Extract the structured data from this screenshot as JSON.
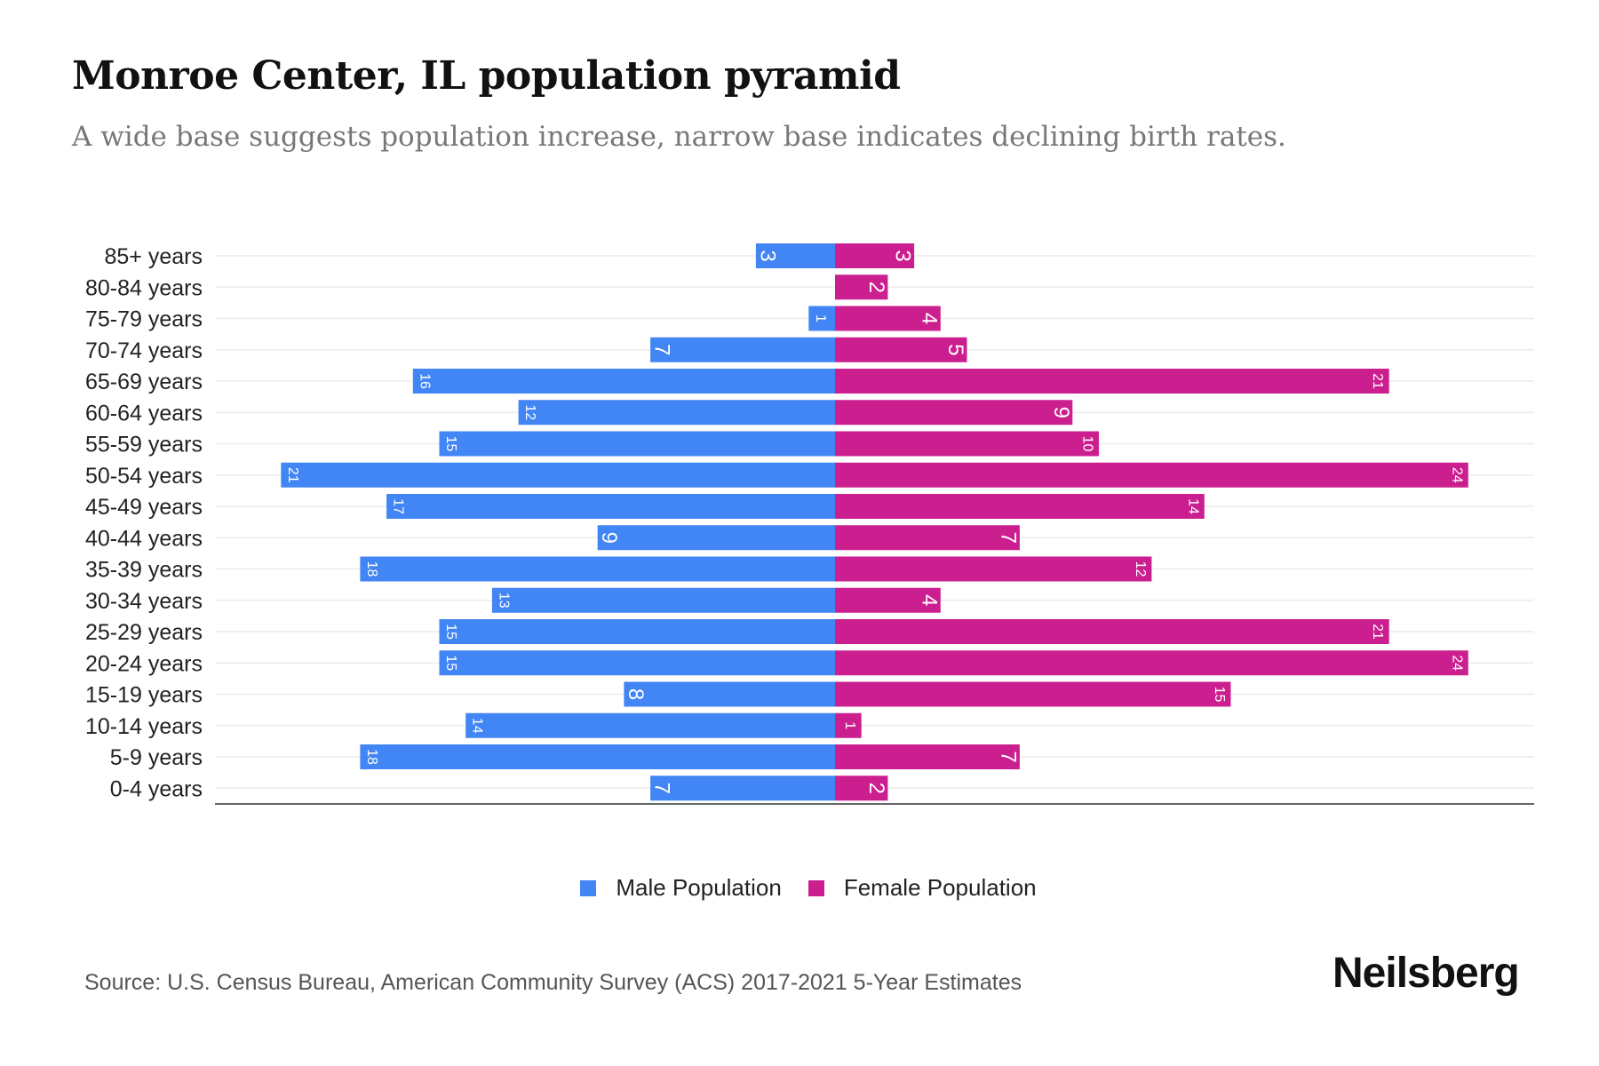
{
  "title": "Monroe Center, IL population pyramid",
  "subtitle": "A wide base suggests population increase, narrow base indicates declining birth rates.",
  "source": "Source: U.S. Census Bureau, American Community Survey (ACS) 2017-2021 5-Year Estimates",
  "logo": "Neilsberg",
  "chart_data": {
    "type": "bar",
    "orientation": "horizontal-pyramid",
    "categories": [
      "85+ years",
      "80-84 years",
      "75-79 years",
      "70-74 years",
      "65-69 years",
      "60-64 years",
      "55-59 years",
      "50-54 years",
      "45-49 years",
      "40-44 years",
      "35-39 years",
      "30-34 years",
      "25-29 years",
      "20-24 years",
      "15-19 years",
      "10-14 years",
      "5-9 years",
      "0-4 years"
    ],
    "series": [
      {
        "name": "Male Population",
        "color": "#4285f4",
        "values": [
          3,
          0,
          1,
          7,
          16,
          12,
          15,
          21,
          17,
          9,
          18,
          13,
          15,
          15,
          8,
          14,
          18,
          7
        ]
      },
      {
        "name": "Female Population",
        "color": "#cc1f8f",
        "values": [
          3,
          2,
          4,
          5,
          21,
          9,
          10,
          24,
          14,
          7,
          12,
          4,
          21,
          24,
          15,
          1,
          7,
          2
        ]
      }
    ],
    "legend_position": "bottom",
    "grid": true
  }
}
